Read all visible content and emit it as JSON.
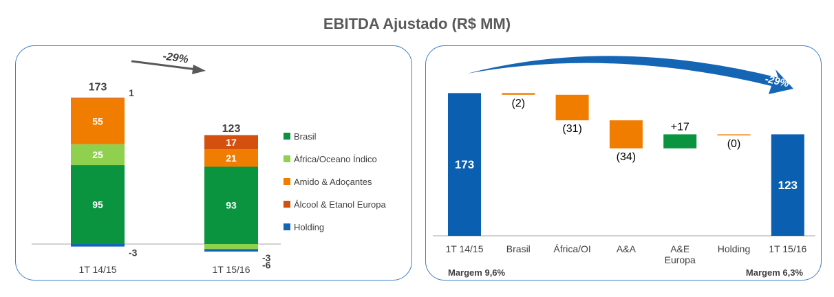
{
  "page_title": "EBITDA Ajustado (R$ MM)",
  "chart_data": [
    {
      "type": "bar",
      "stacked": true,
      "categories": [
        "1T 14/15",
        "1T 15/16"
      ],
      "totals": [
        173,
        123
      ],
      "change_label": "-29%",
      "series": [
        {
          "name": "Brasil",
          "color": "#0a9440",
          "values": [
            95,
            93
          ],
          "labels": [
            "95",
            "93"
          ]
        },
        {
          "name": "África/Oceano Índico",
          "color": "#8fd14f",
          "values": [
            25,
            -6
          ],
          "labels": [
            "25",
            "-6"
          ]
        },
        {
          "name": "Amido & Adoçantes",
          "color": "#f07d00",
          "values": [
            55,
            21
          ],
          "labels": [
            "55",
            "21"
          ]
        },
        {
          "name": "Álcool & Etanol Europa",
          "color": "#d4500f",
          "values": [
            1,
            17
          ],
          "labels": [
            "1",
            "17"
          ]
        },
        {
          "name": "Holding",
          "color": "#1565b5",
          "values": [
            -3,
            -3
          ],
          "labels": [
            "-3",
            "-3"
          ]
        }
      ],
      "legend_position": "right"
    },
    {
      "type": "waterfall",
      "categories": [
        "1T 14/15",
        "Brasil",
        "África/OI",
        "A&A",
        "A&E\nEuropa",
        "Holding",
        "1T 15/16"
      ],
      "values": [
        173,
        -2,
        -31,
        -34,
        17,
        0,
        123
      ],
      "labels": [
        "173",
        "(2)",
        "(31)",
        "(34)",
        "+17",
        "(0)",
        "123"
      ],
      "kinds": [
        "total",
        "delta",
        "delta",
        "delta",
        "delta",
        "delta",
        "total"
      ],
      "colors": {
        "total": "#0b5fb0",
        "decrease": "#f07d00",
        "increase": "#0a9440"
      },
      "change_label": "-29%",
      "margin_left": "Margem 9,6%",
      "margin_right": "Margem 6,3%"
    }
  ]
}
